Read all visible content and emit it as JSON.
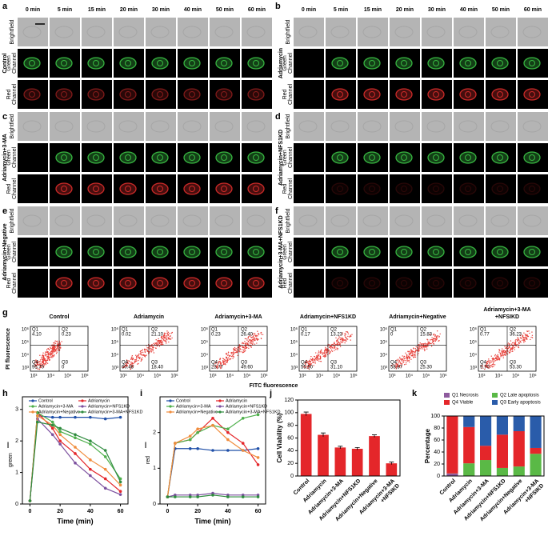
{
  "panels": [
    {
      "label": "a",
      "condition": "Control"
    },
    {
      "label": "b",
      "condition": "Adriamycin"
    },
    {
      "label": "c",
      "condition": "Adriamycin+3-MA"
    },
    {
      "label": "d",
      "condition": "Adriamycin+NFS1KD"
    },
    {
      "label": "e",
      "condition": "Adriamycin+Negative"
    },
    {
      "label": "f",
      "condition": "Adriamycin+3-MA+NFS1KD"
    }
  ],
  "time_labels": [
    "0 min",
    "5 min",
    "15 min",
    "20 min",
    "30 min",
    "40 min",
    "50 min",
    "60 min"
  ],
  "row_labels": [
    [
      "Brightfield"
    ],
    [
      "Green",
      "Channel"
    ],
    [
      "Red",
      "Channel"
    ]
  ],
  "flow": {
    "label": "g",
    "y_label": "PI fluorescence",
    "x_label": "FITC fluorescence",
    "x_ticks": [
      "10³",
      "10⁴",
      "10⁵",
      "10⁶"
    ],
    "y_ticks": [
      "10³",
      "10⁴",
      "10⁵",
      "10⁶"
    ],
    "plots": [
      {
        "title": [
          "Control"
        ],
        "quadrants": [
          {
            "name": "Q1",
            "value": "4.10"
          },
          {
            "name": "Q2",
            "value": "0.23"
          },
          {
            "name": "Q3",
            "value": "0"
          },
          {
            "name": "Q4",
            "value": "95.70"
          }
        ]
      },
      {
        "title": [
          "Adriamycin"
        ],
        "quadrants": [
          {
            "name": "Q1",
            "value": "0.02"
          },
          {
            "name": "Q2",
            "value": "21.10"
          },
          {
            "name": "Q3",
            "value": "18.40"
          },
          {
            "name": "Q4",
            "value": "60.48"
          }
        ]
      },
      {
        "title": [
          "Adriamycin+3-MA"
        ],
        "quadrants": [
          {
            "name": "Q1",
            "value": "0.23"
          },
          {
            "name": "Q2",
            "value": "26.40"
          },
          {
            "name": "Q3",
            "value": "49.60"
          },
          {
            "name": "Q4",
            "value": "23.77"
          }
        ]
      },
      {
        "title": [
          "Adriamycin+NFS1KD"
        ],
        "quadrants": [
          {
            "name": "Q1",
            "value": "0.17"
          },
          {
            "name": "Q2",
            "value": "13.23"
          },
          {
            "name": "Q3",
            "value": "31.10"
          },
          {
            "name": "Q4",
            "value": "55.50"
          }
        ]
      },
      {
        "title": [
          "Adriamycin+Negative"
        ],
        "quadrants": [
          {
            "name": "Q1",
            "value": "0"
          },
          {
            "name": "Q2",
            "value": "15.83"
          },
          {
            "name": "Q3",
            "value": "25.30"
          },
          {
            "name": "Q4",
            "value": "58.87"
          }
        ]
      },
      {
        "title": [
          "Adriamycin+3-MA",
          "+NFSIKD"
        ],
        "quadrants": [
          {
            "name": "Q1",
            "value": "0.77"
          },
          {
            "name": "Q2",
            "value": "36.23"
          },
          {
            "name": "Q3",
            "value": "53.30"
          },
          {
            "name": "Q4",
            "value": "9.70"
          }
        ]
      }
    ]
  },
  "chart_data": [
    {
      "type": "line",
      "label": "h",
      "y_label": "I",
      "y_label_sub": "green",
      "x_label": "Time (min)",
      "x": [
        0,
        5,
        15,
        20,
        30,
        40,
        50,
        60
      ],
      "xlim": [
        -5,
        65
      ],
      "xticks": [
        0,
        20,
        40,
        60
      ],
      "ylim": [
        0,
        3.4
      ],
      "yticks": [
        0,
        1,
        2,
        3
      ],
      "series": [
        {
          "name": "Control",
          "color": "#1f4fa8",
          "values": [
            0.1,
            2.8,
            2.75,
            2.75,
            2.75,
            2.75,
            2.7,
            2.75
          ]
        },
        {
          "name": "Adriamycin",
          "color": "#e4262a",
          "values": [
            0.1,
            2.9,
            2.4,
            2.0,
            1.6,
            1.1,
            0.8,
            0.4
          ]
        },
        {
          "name": "Adriamycin+3-MA",
          "color": "#4daf4a",
          "values": [
            0.1,
            2.9,
            2.6,
            2.3,
            2.1,
            1.9,
            1.5,
            0.8
          ]
        },
        {
          "name": "Adriamycin+NFS1KD",
          "color": "#7b4f9e",
          "values": [
            0.1,
            2.7,
            2.2,
            1.9,
            1.3,
            0.9,
            0.5,
            0.3
          ]
        },
        {
          "name": "Adriamycin+Negative",
          "color": "#f08c3c",
          "values": [
            0.1,
            2.8,
            2.5,
            2.2,
            1.8,
            1.4,
            1.1,
            0.6
          ]
        },
        {
          "name": "Adriamycin+3-MA+NFS1KD",
          "color": "#2e8b3e",
          "values": [
            0.1,
            2.6,
            2.5,
            2.4,
            2.2,
            2.0,
            1.7,
            0.7
          ]
        }
      ]
    },
    {
      "type": "line",
      "label": "i",
      "y_label": "I",
      "y_label_sub": "red",
      "x_label": "Time (min)",
      "x": [
        0,
        5,
        15,
        20,
        30,
        40,
        50,
        60
      ],
      "xlim": [
        -5,
        65
      ],
      "xticks": [
        0,
        20,
        40,
        60
      ],
      "ylim": [
        0,
        3
      ],
      "yticks": [
        0,
        1,
        2
      ],
      "series": [
        {
          "name": "Control",
          "color": "#1f4fa8",
          "values": [
            0.2,
            1.55,
            1.55,
            1.55,
            1.5,
            1.5,
            1.5,
            1.55
          ]
        },
        {
          "name": "Adriamycin",
          "color": "#e4262a",
          "values": [
            0.2,
            1.7,
            1.8,
            2.0,
            2.4,
            2.0,
            1.7,
            1.1
          ]
        },
        {
          "name": "Adriamycin+3-MA",
          "color": "#4daf4a",
          "values": [
            0.2,
            1.7,
            1.8,
            2.0,
            2.2,
            2.1,
            2.4,
            2.5
          ]
        },
        {
          "name": "Adriamycin+NFS1KD",
          "color": "#7b4f9e",
          "values": [
            0.2,
            0.25,
            0.25,
            0.25,
            0.3,
            0.25,
            0.25,
            0.25
          ]
        },
        {
          "name": "Adriamycin+Negative",
          "color": "#f08c3c",
          "values": [
            0.2,
            1.7,
            1.9,
            2.1,
            2.2,
            1.8,
            1.5,
            1.3
          ]
        },
        {
          "name": "Adriamycin+3-MA+NFS1KD",
          "color": "#2e8b3e",
          "values": [
            0.2,
            0.2,
            0.2,
            0.2,
            0.25,
            0.2,
            0.2,
            0.2
          ]
        }
      ]
    },
    {
      "type": "bar",
      "label": "j",
      "y_label": "Cell Viability (%)",
      "categories": [
        [
          "Control"
        ],
        [
          "Adriamycin"
        ],
        [
          "Adriamycin+3-MA"
        ],
        [
          "Adriamycin+NFS1KD"
        ],
        [
          "Adriamycin+Negative"
        ],
        [
          "Adriamycin+3-MA",
          "+NFSIKD"
        ]
      ],
      "values": [
        98,
        65,
        45,
        43,
        63,
        20
      ],
      "errors": [
        3,
        3,
        2,
        2,
        2,
        2
      ],
      "color": "#e4262a",
      "ylim": [
        0,
        120
      ],
      "yticks": [
        0,
        20,
        40,
        60,
        80,
        100,
        120
      ]
    },
    {
      "type": "stacked_bar",
      "label": "k",
      "y_label": "Percentage",
      "categories": [
        [
          "Control"
        ],
        [
          "Adriamycin"
        ],
        [
          "Adriamycin+3-MA"
        ],
        [
          "Adriamycin+NFS1KD"
        ],
        [
          "Adriamycin+Negative"
        ],
        [
          "Adriamycin+3-MA",
          "+NFSIKD"
        ]
      ],
      "ylim": [
        0,
        100
      ],
      "yticks": [
        0,
        20,
        40,
        60,
        80,
        100
      ],
      "series": [
        {
          "name": "Q1 Necrosis",
          "color": "#8e5b9e",
          "values": [
            4.1,
            0.02,
            0.23,
            0.17,
            0,
            0.77
          ]
        },
        {
          "name": "Q2 Late apoptosis",
          "color": "#5ab946",
          "values": [
            0.23,
            21.1,
            26.4,
            13.23,
            15.83,
            36.23
          ]
        },
        {
          "name": "Q4 Viable",
          "color": "#e4262a",
          "values": [
            95.7,
            60.48,
            23.77,
            55.5,
            58.87,
            9.7
          ]
        },
        {
          "name": "Q3 Early apoptosis",
          "color": "#2a5caa",
          "values": [
            0,
            18.4,
            49.6,
            31.1,
            25.3,
            53.3
          ]
        }
      ]
    }
  ]
}
